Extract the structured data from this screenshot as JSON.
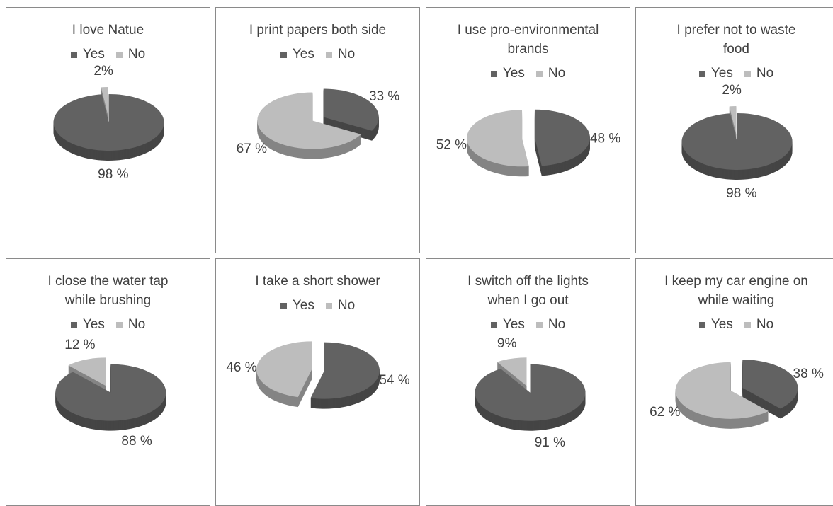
{
  "chart_data": [
    {
      "type": "pie",
      "title": "I love Natue",
      "categories": [
        "Yes",
        "No"
      ],
      "values": [
        98,
        2
      ],
      "value_labels": [
        "98 %",
        "2%"
      ],
      "colors": [
        "#626262",
        "#bdbdbd"
      ]
    },
    {
      "type": "pie",
      "title": "I print papers both side",
      "categories": [
        "Yes",
        "No"
      ],
      "values": [
        33,
        67
      ],
      "value_labels": [
        "33 %",
        "67 %"
      ],
      "colors": [
        "#626262",
        "#bdbdbd"
      ]
    },
    {
      "type": "pie",
      "title": "I use pro-environmental brands",
      "categories": [
        "Yes",
        "No"
      ],
      "values": [
        48,
        52
      ],
      "value_labels": [
        "48 %",
        "52 %"
      ],
      "colors": [
        "#626262",
        "#bdbdbd"
      ]
    },
    {
      "type": "pie",
      "title": "I prefer not to waste food",
      "categories": [
        "Yes",
        "No"
      ],
      "values": [
        98,
        2
      ],
      "value_labels": [
        "98 %",
        "2%"
      ],
      "colors": [
        "#626262",
        "#bdbdbd"
      ]
    },
    {
      "type": "pie",
      "title": "I close the water tap while brushing",
      "categories": [
        "Yes",
        "No"
      ],
      "values": [
        88,
        12
      ],
      "value_labels": [
        "88 %",
        "12 %"
      ],
      "colors": [
        "#626262",
        "#bdbdbd"
      ]
    },
    {
      "type": "pie",
      "title": "I take a short shower",
      "categories": [
        "Yes",
        "No"
      ],
      "values": [
        54,
        46
      ],
      "value_labels": [
        "54 %",
        "46 %"
      ],
      "colors": [
        "#626262",
        "#bdbdbd"
      ]
    },
    {
      "type": "pie",
      "title": "I switch off the lights when I go out",
      "categories": [
        "Yes",
        "No"
      ],
      "values": [
        91,
        9
      ],
      "value_labels": [
        "91 %",
        "9%"
      ],
      "colors": [
        "#626262",
        "#bdbdbd"
      ]
    },
    {
      "type": "pie",
      "title": "I keep my car engine on while waiting",
      "categories": [
        "Yes",
        "No"
      ],
      "values": [
        38,
        62
      ],
      "value_labels": [
        "38 %",
        "62 %"
      ],
      "colors": [
        "#626262",
        "#bdbdbd"
      ]
    }
  ]
}
